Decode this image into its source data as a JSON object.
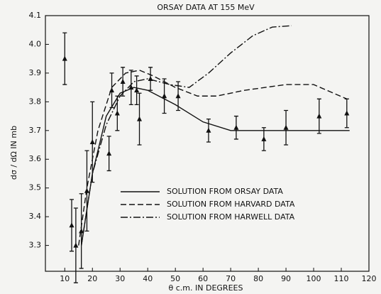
{
  "chart_data": {
    "type": "line",
    "title": "ORSAY DATA AT 155 MeV",
    "x_label": "θ c.m. IN DEGREES",
    "y_label": "dσ / dΩ IN mb",
    "xlim": [
      3,
      120
    ],
    "ylim": [
      3.21,
      4.1
    ],
    "xticks": [
      10,
      20,
      30,
      40,
      50,
      60,
      70,
      80,
      90,
      100,
      110,
      120
    ],
    "yticks": [
      3.3,
      3.4,
      3.5,
      3.6,
      3.7,
      3.8,
      3.9,
      {
        "value": 4,
        "label": "4.0"
      },
      4.1
    ],
    "color": "#111111",
    "series": [
      {
        "name": "SOLUTION FROM ORSAY DATA",
        "dash": "solid",
        "x": [
          16,
          20,
          25,
          30,
          35,
          40,
          50,
          60,
          70,
          80,
          113
        ],
        "values": [
          3.3,
          3.55,
          3.75,
          3.83,
          3.85,
          3.84,
          3.79,
          3.73,
          3.7,
          3.7,
          3.7
        ]
      },
      {
        "name": "SOLUTION FROM HARVARD DATA",
        "dash": "dashed",
        "x": [
          15,
          18,
          22,
          27,
          32,
          37,
          42,
          50,
          58,
          65,
          75,
          90,
          100,
          112
        ],
        "values": [
          3.3,
          3.5,
          3.7,
          3.85,
          3.9,
          3.91,
          3.89,
          3.85,
          3.82,
          3.82,
          3.84,
          3.86,
          3.86,
          3.81
        ]
      },
      {
        "name": "SOLUTION FROM HARWELL DATA",
        "dash": "dashdot",
        "x": [
          16,
          20,
          25,
          30,
          35,
          40,
          48,
          55,
          62,
          70,
          78,
          85,
          92
        ],
        "values": [
          3.3,
          3.55,
          3.72,
          3.82,
          3.87,
          3.88,
          3.86,
          3.85,
          3.9,
          3.97,
          4.03,
          4.06,
          4.065
        ]
      }
    ],
    "measurements": {
      "x": [
        10,
        12.5,
        14,
        16,
        18,
        20,
        26,
        27,
        29,
        31,
        34,
        36,
        37,
        41,
        46,
        51,
        62,
        72,
        82,
        90,
        102,
        112
      ],
      "values": [
        3.95,
        3.37,
        3.3,
        3.35,
        3.49,
        3.66,
        3.62,
        3.84,
        3.76,
        3.87,
        3.85,
        3.84,
        3.74,
        3.88,
        3.82,
        3.82,
        3.7,
        3.71,
        3.67,
        3.71,
        3.75,
        3.76
      ],
      "errors": [
        0.09,
        0.09,
        0.13,
        0.13,
        0.14,
        0.14,
        0.06,
        0.06,
        0.06,
        0.05,
        0.06,
        0.05,
        0.09,
        0.04,
        0.06,
        0.05,
        0.04,
        0.04,
        0.04,
        0.06,
        0.06,
        0.05
      ]
    }
  }
}
